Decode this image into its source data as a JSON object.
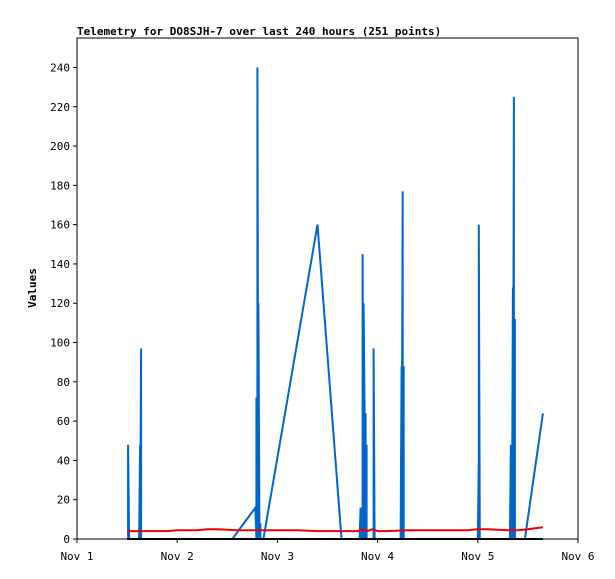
{
  "chart_data": {
    "type": "line",
    "title": "Telemetry for DO8SJH-7 over last 240 hours (251 points)",
    "xlabel": "",
    "ylabel": "Values",
    "xlim": [
      0,
      5
    ],
    "ylim": [
      0,
      255
    ],
    "x_ticks": [
      {
        "value": 0,
        "label": "Nov 1"
      },
      {
        "value": 1,
        "label": "Nov 2"
      },
      {
        "value": 2,
        "label": "Nov 3"
      },
      {
        "value": 3,
        "label": "Nov 4"
      },
      {
        "value": 4,
        "label": "Nov 5"
      },
      {
        "value": 5,
        "label": "Nov 6"
      }
    ],
    "y_ticks": [
      0,
      20,
      40,
      60,
      80,
      100,
      120,
      140,
      160,
      180,
      200,
      220,
      240
    ],
    "grid": false,
    "legend": "none",
    "series": [
      {
        "color": "#0066cc",
        "x": [
          0.5,
          0.51,
          0.51,
          0.52,
          0.62,
          0.63,
          0.63,
          0.64,
          0.64,
          0.65,
          0.65,
          0.66,
          1.55,
          1.78,
          1.79,
          1.79,
          1.8,
          1.8,
          1.81,
          1.81,
          1.82,
          1.82,
          1.83,
          1.83,
          1.84,
          1.84,
          1.86,
          2.4,
          2.64,
          2.82,
          2.83,
          2.83,
          2.84,
          2.85,
          2.85,
          2.86,
          2.86,
          2.87,
          2.87,
          2.88,
          2.88,
          2.89,
          2.89,
          2.9,
          2.9,
          2.91,
          2.93,
          2.96,
          2.96,
          2.97,
          3.23,
          3.24,
          3.24,
          3.25,
          3.25,
          3.26,
          3.26,
          3.27,
          4.0,
          4.01,
          4.01,
          4.02,
          4.32,
          4.33,
          4.33,
          4.34,
          4.34,
          4.35,
          4.35,
          4.36,
          4.36,
          4.37,
          4.37,
          4.38,
          4.38,
          4.39,
          4.39,
          4.4,
          4.47,
          4.65
        ],
        "values": [
          0,
          0,
          48,
          0,
          0,
          48,
          0,
          97,
          0,
          0,
          0,
          0,
          0,
          16,
          0,
          72,
          0,
          240,
          0,
          120,
          8,
          0,
          8,
          0,
          0,
          0,
          0,
          160,
          0,
          0,
          16,
          0,
          16,
          0,
          145,
          0,
          120,
          64,
          0,
          64,
          0,
          48,
          0,
          0,
          0,
          0,
          0,
          0,
          97,
          0,
          0,
          88,
          0,
          177,
          0,
          88,
          0,
          0,
          0,
          40,
          160,
          0,
          0,
          48,
          0,
          48,
          0,
          128,
          0,
          225,
          0,
          112,
          0,
          0,
          0,
          0,
          0,
          0,
          0,
          64
        ]
      },
      {
        "color": "#ee0000",
        "x": [
          0.5,
          0.7,
          0.9,
          1.0,
          1.2,
          1.3,
          1.4,
          1.6,
          1.8,
          2.0,
          2.2,
          2.4,
          2.6,
          2.8,
          2.85,
          2.9,
          2.95,
          3.0,
          3.1,
          3.3,
          3.5,
          3.7,
          3.9,
          4.0,
          4.1,
          4.3,
          4.4,
          4.5,
          4.65
        ],
        "values": [
          4,
          4,
          4,
          4.5,
          4.5,
          5,
          5,
          4.5,
          4.5,
          4.5,
          4.5,
          4,
          4,
          4,
          5,
          4,
          5,
          4,
          4,
          4.5,
          4.5,
          4.5,
          4.5,
          5,
          5,
          4.5,
          4.5,
          5,
          6
        ]
      },
      {
        "color": "#000000",
        "x": [
          0.5,
          4.65
        ],
        "values": [
          0,
          0
        ]
      }
    ]
  }
}
